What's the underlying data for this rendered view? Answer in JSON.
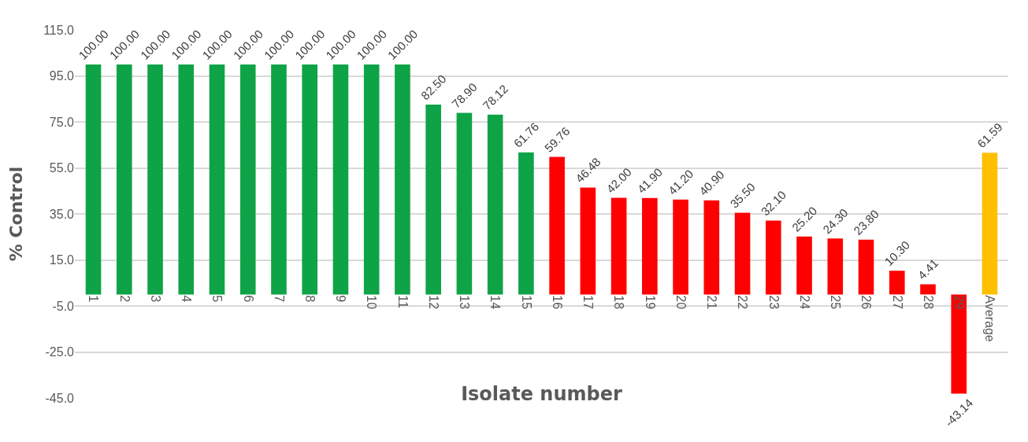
{
  "chart_data": {
    "type": "bar",
    "xlabel": "Isolate number",
    "ylabel": "% Control",
    "categories": [
      "1",
      "2",
      "3",
      "4",
      "5",
      "6",
      "7",
      "8",
      "9",
      "10",
      "11",
      "12",
      "13",
      "14",
      "15",
      "16",
      "17",
      "18",
      "19",
      "20",
      "21",
      "22",
      "23",
      "24",
      "25",
      "26",
      "27",
      "28",
      "29",
      "Average"
    ],
    "values": [
      100,
      100,
      100,
      100,
      100,
      100,
      100,
      100,
      100,
      100,
      100,
      82.5,
      78.9,
      78.12,
      61.76,
      59.76,
      46.48,
      42,
      41.9,
      41.2,
      40.9,
      35.5,
      32.1,
      25.2,
      24.3,
      23.8,
      10.3,
      4.41,
      -43.14,
      61.59
    ],
    "value_labels": [
      "100.00",
      "100.00",
      "100.00",
      "100.00",
      "100.00",
      "100.00",
      "100.00",
      "100.00",
      "100.00",
      "100.00",
      "100.00",
      "82.50",
      "78.90",
      "78.12",
      "61.76",
      "59.76",
      "46.48",
      "42.00",
      "41.90",
      "41.20",
      "40.90",
      "35.50",
      "32.10",
      "25.20",
      "24.30",
      "23.80",
      "10.30",
      "4.41",
      "-43.14",
      "61.59"
    ],
    "colors": [
      "#0fa347",
      "#0fa347",
      "#0fa347",
      "#0fa347",
      "#0fa347",
      "#0fa347",
      "#0fa347",
      "#0fa347",
      "#0fa347",
      "#0fa347",
      "#0fa347",
      "#0fa347",
      "#0fa347",
      "#0fa347",
      "#0fa347",
      "#ff0000",
      "#ff0000",
      "#ff0000",
      "#ff0000",
      "#ff0000",
      "#ff0000",
      "#ff0000",
      "#ff0000",
      "#ff0000",
      "#ff0000",
      "#ff0000",
      "#ff0000",
      "#ff0000",
      "#ff0000",
      "#ffc000"
    ],
    "ylim": [
      -45,
      115
    ],
    "yticks": [
      {
        "value": -45,
        "label": "-45.0"
      },
      {
        "value": -25,
        "label": "-25.0"
      },
      {
        "value": -5,
        "label": "-5.0"
      },
      {
        "value": 15,
        "label": "15.0"
      },
      {
        "value": 35,
        "label": "35.0"
      },
      {
        "value": 55,
        "label": "55.0"
      },
      {
        "value": 75,
        "label": "75.0"
      },
      {
        "value": 95,
        "label": "95.0"
      },
      {
        "value": 115,
        "label": "115.0"
      }
    ],
    "grid": "y"
  }
}
